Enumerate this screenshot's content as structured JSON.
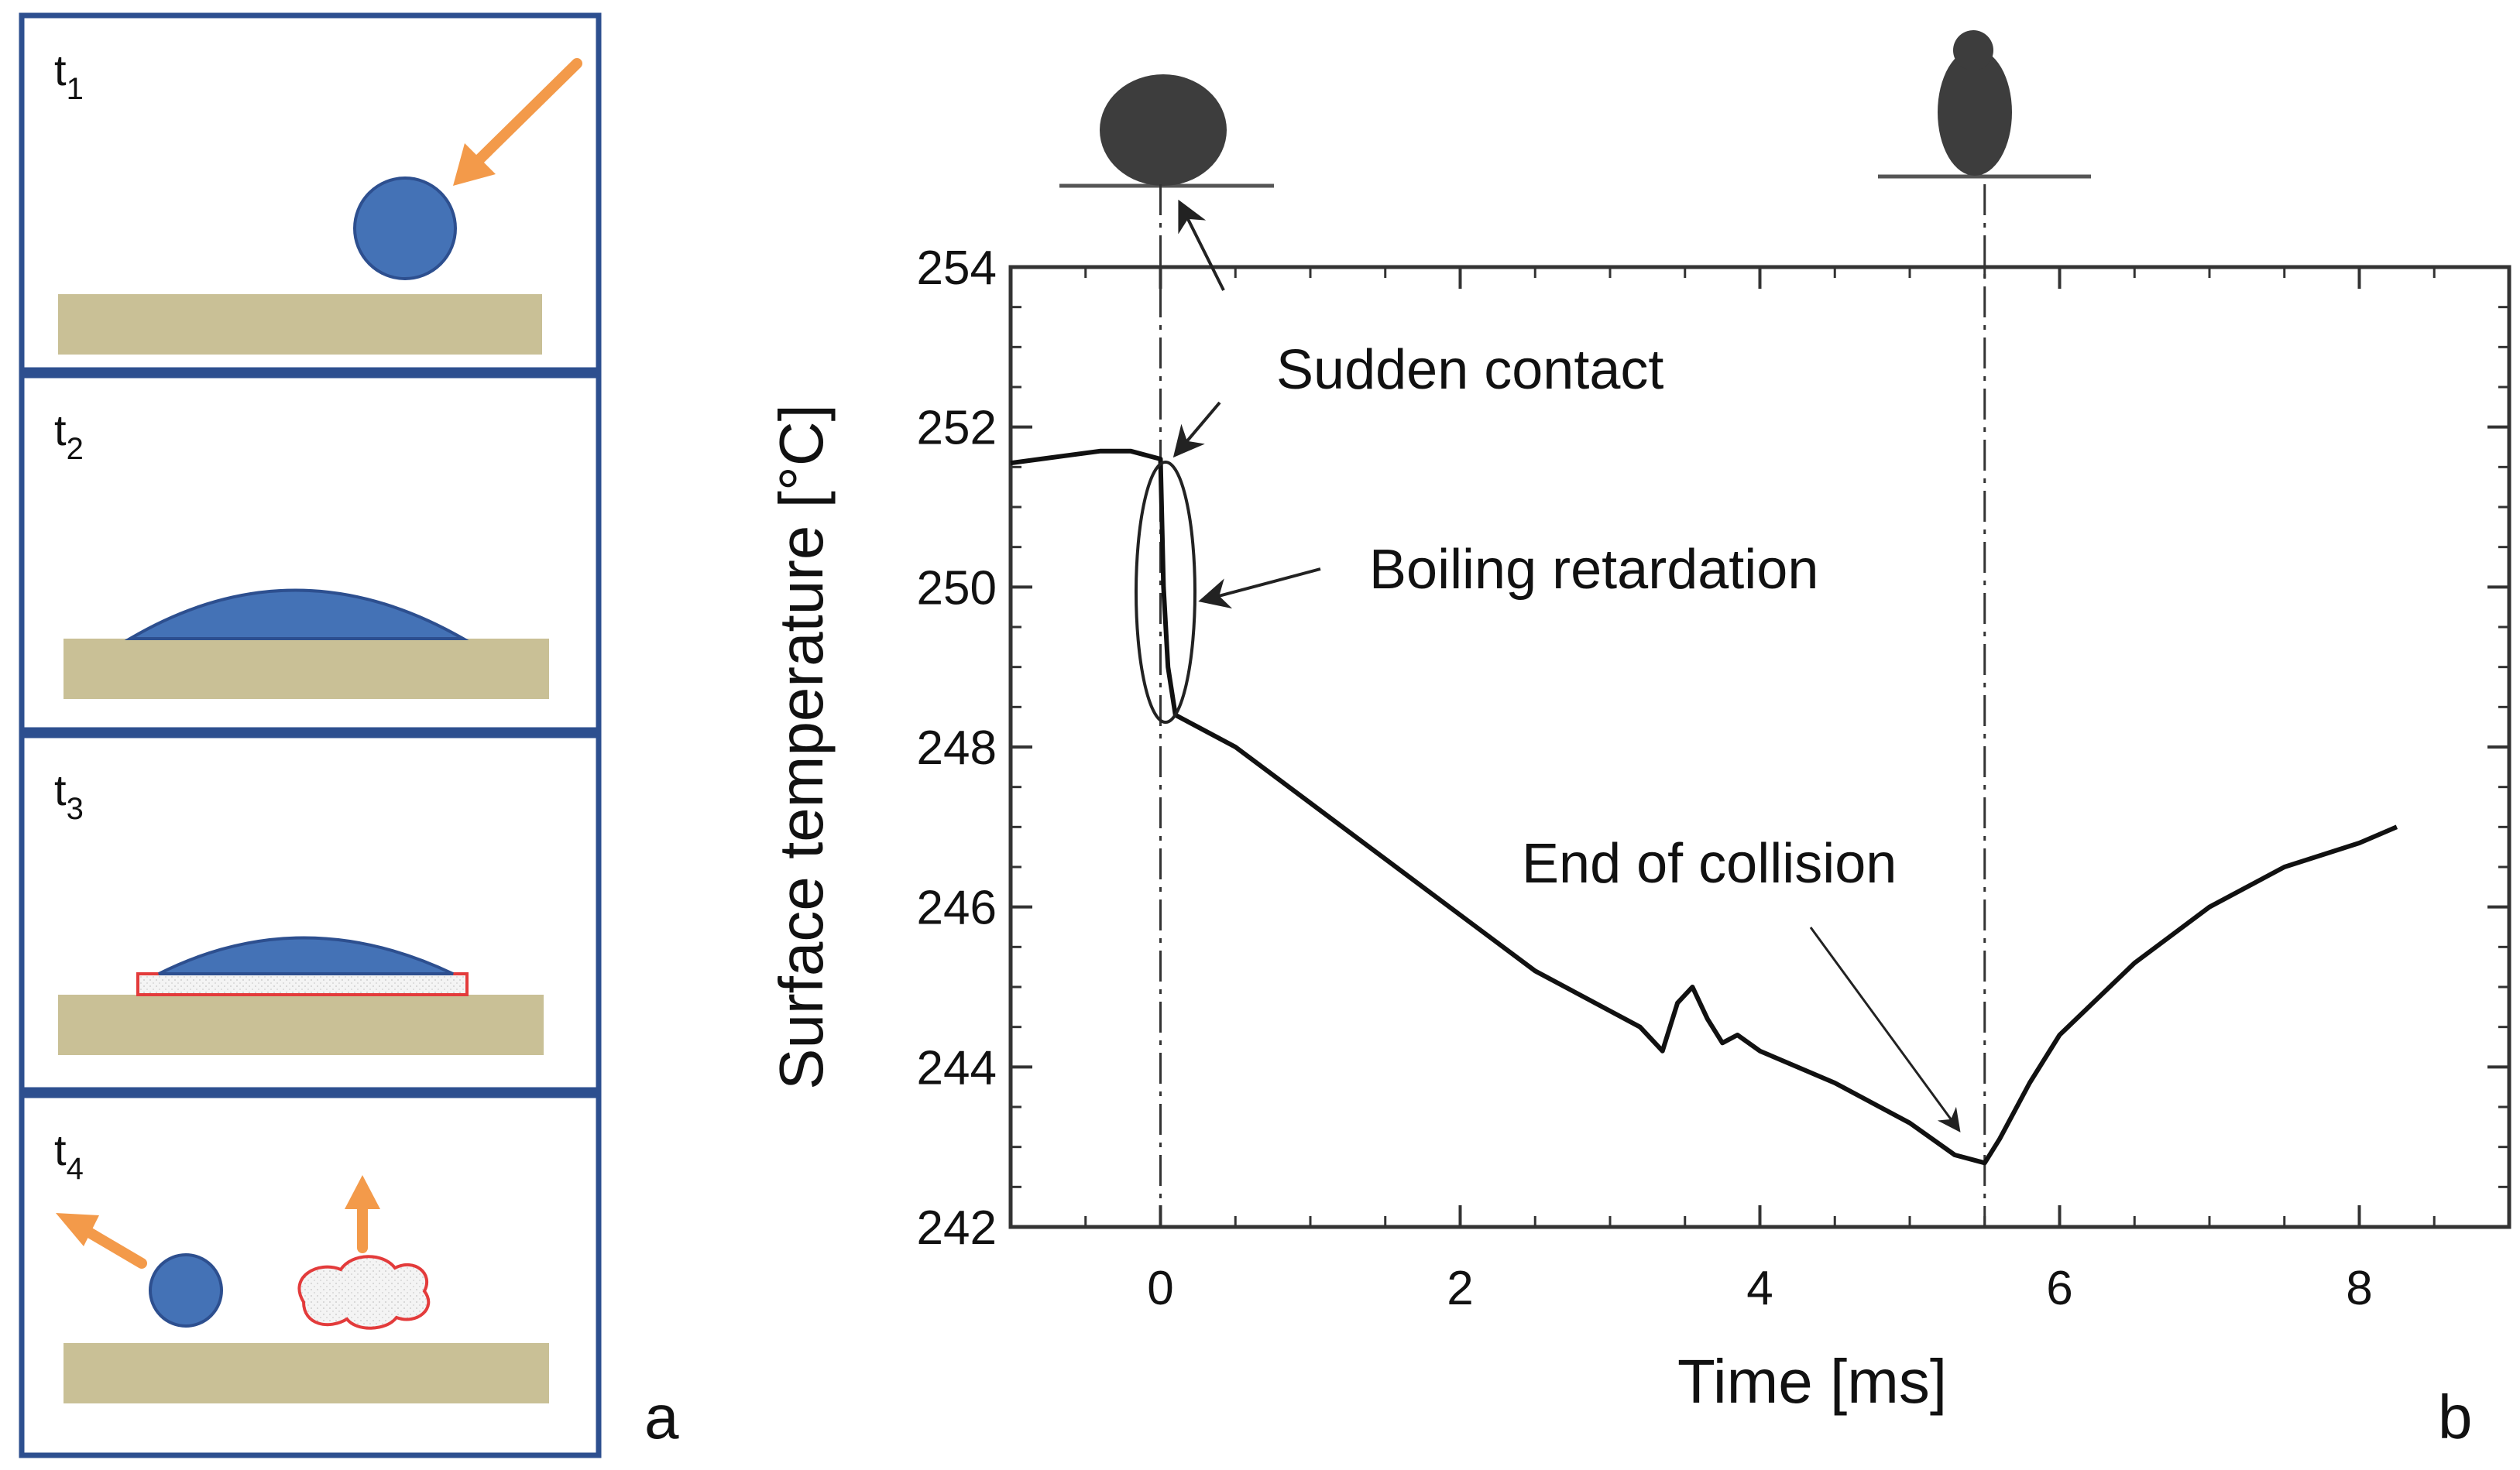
{
  "panel_a": {
    "label": "a",
    "frames": [
      {
        "time_label": "t",
        "subscript": "1"
      },
      {
        "time_label": "t",
        "subscript": "2"
      },
      {
        "time_label": "t",
        "subscript": "3"
      },
      {
        "time_label": "t",
        "subscript": "4"
      }
    ]
  },
  "chart_data": {
    "type": "line",
    "panel_label": "b",
    "title": "",
    "xlabel": "Time [ms]",
    "ylabel": "Surface temperature [°C]",
    "xlim": [
      -1,
      9
    ],
    "ylim": [
      242,
      254
    ],
    "xticks": [
      0,
      2,
      4,
      6,
      8
    ],
    "yticks": [
      242,
      244,
      246,
      248,
      250,
      252,
      254
    ],
    "grid": false,
    "series": [
      {
        "name": "Surface temperature",
        "x": [
          -1.0,
          -0.8,
          -0.6,
          -0.4,
          -0.2,
          0.0,
          0.02,
          0.05,
          0.1,
          0.3,
          0.5,
          1.0,
          1.5,
          2.0,
          2.5,
          3.0,
          3.2,
          3.35,
          3.45,
          3.55,
          3.65,
          3.75,
          3.85,
          4.0,
          4.5,
          5.0,
          5.3,
          5.5,
          5.6,
          5.8,
          6.0,
          6.5,
          7.0,
          7.5,
          8.0,
          8.25
        ],
        "y": [
          251.55,
          251.6,
          251.65,
          251.7,
          251.7,
          251.6,
          250.0,
          249.0,
          248.4,
          248.2,
          248.0,
          247.3,
          246.6,
          245.9,
          245.2,
          244.7,
          244.5,
          244.2,
          244.8,
          245.0,
          244.6,
          244.3,
          244.4,
          244.2,
          243.8,
          243.3,
          242.9,
          242.8,
          243.1,
          243.8,
          244.4,
          245.3,
          246.0,
          246.5,
          246.8,
          247.0
        ]
      }
    ],
    "annotations": [
      {
        "text": "Sudden contact",
        "x": 0.0
      },
      {
        "text": "Boiling retardation",
        "x": 0.0
      },
      {
        "text": "End of collision",
        "x": 5.5
      }
    ],
    "vertical_markers": [
      0.0,
      5.5
    ]
  }
}
